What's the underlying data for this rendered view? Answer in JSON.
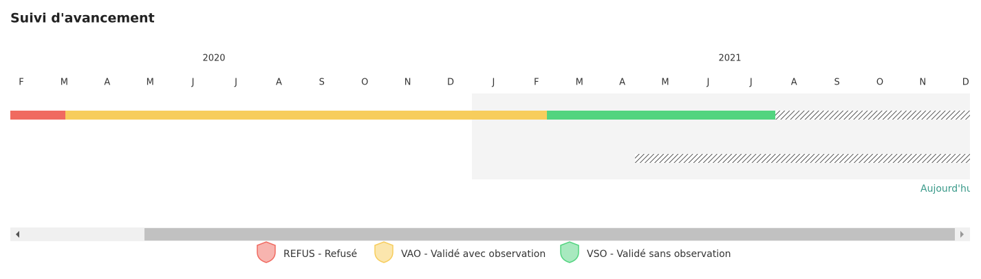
{
  "header": {
    "title": "Suivi d'avancement"
  },
  "timeline": {
    "years": [
      "2020",
      "2021"
    ],
    "months": [
      "F",
      "M",
      "A",
      "M",
      "J",
      "J",
      "A",
      "S",
      "O",
      "N",
      "D",
      "J",
      "F",
      "M",
      "A",
      "M",
      "J",
      "J",
      "A",
      "S",
      "O",
      "N",
      "D"
    ],
    "today_label": "Aujourd'hu"
  },
  "legend": [
    {
      "label": "REFUS - Refusé",
      "color": "#f06a60"
    },
    {
      "label": "VAO - Validé avec observation",
      "color": "#f7cd5c"
    },
    {
      "label": "VSO - Validé sans observation",
      "color": "#52d47f"
    }
  ]
}
